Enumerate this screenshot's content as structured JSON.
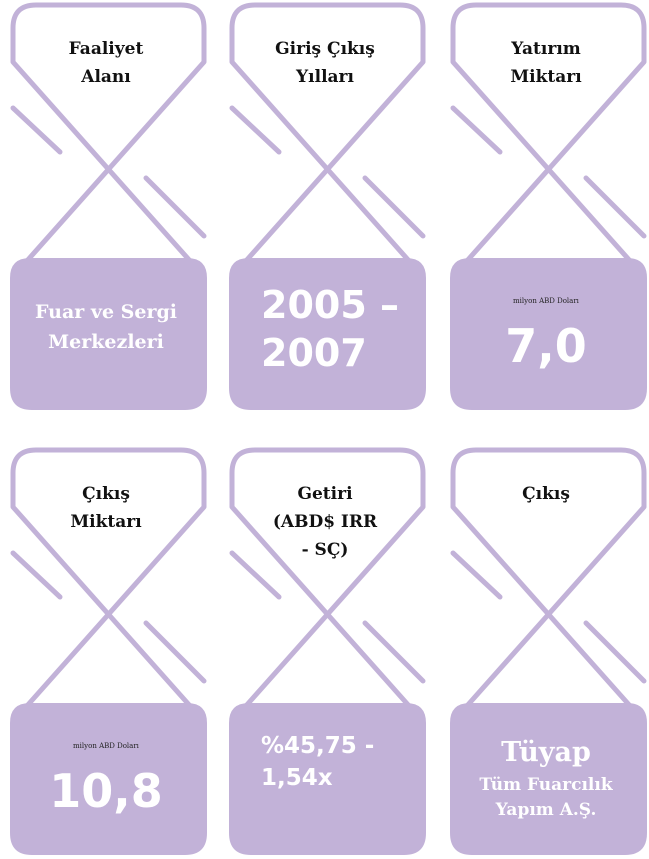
{
  "cards": [
    {
      "title": [
        "Faaliyet",
        "Alanı"
      ],
      "body": [
        "Fuar ve Sergi",
        "Merkezleri"
      ]
    },
    {
      "title": [
        "Giriş Çıkış",
        "Yılları"
      ],
      "body": [
        "2005 –",
        "2007"
      ]
    },
    {
      "title": [
        "Yatırım",
        "Miktarı"
      ],
      "note": "milyon ABD Doları",
      "body": [
        "7,0"
      ]
    },
    {
      "title": [
        "Çıkış",
        "Miktarı"
      ],
      "note": "milyon ABD Doları",
      "body": [
        "10,8"
      ]
    },
    {
      "title": [
        "Getiri",
        "(ABD$ IRR",
        "- SÇ)"
      ],
      "body": [
        "%45,75 -",
        "1,54x"
      ]
    },
    {
      "title": [
        "Çıkış"
      ],
      "body": [
        "Tüyap",
        "Tüm Fuarcılık",
        "Yapım A.Ş."
      ]
    }
  ]
}
